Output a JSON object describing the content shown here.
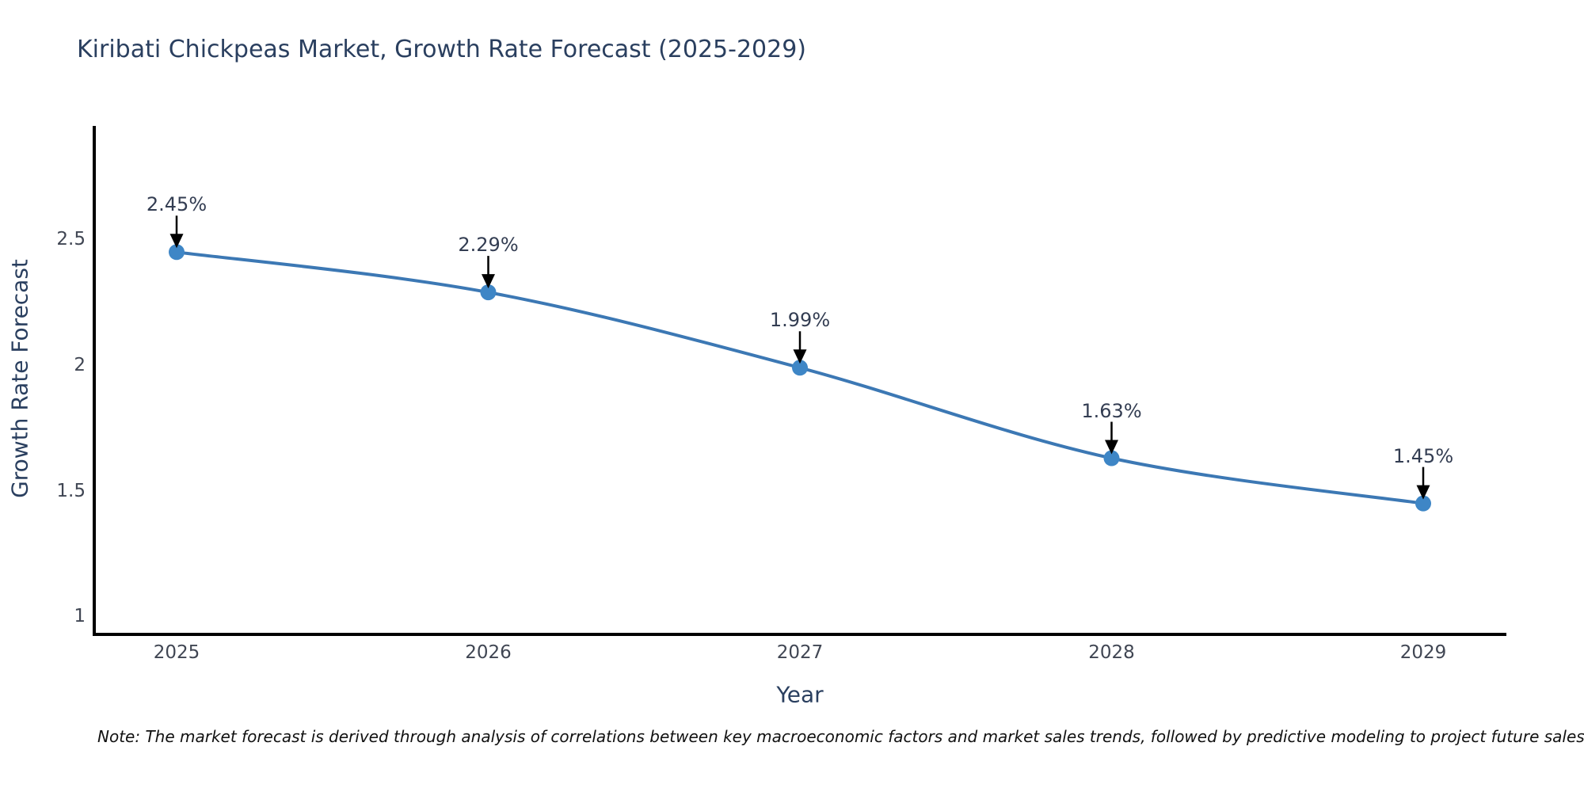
{
  "title": "Kiribati Chickpeas Market, Growth Rate Forecast (2025-2029)",
  "note": "Note: The market forecast is derived through analysis of correlations between key macroeconomic factors and market sales trends, followed by predictive modeling to project future sales",
  "chart_data": {
    "type": "line",
    "title": "Kiribati Chickpeas Market, Growth Rate Forecast (2025-2029)",
    "xlabel": "Year",
    "ylabel": "Growth Rate Forecast",
    "categories": [
      "2025",
      "2026",
      "2027",
      "2028",
      "2029"
    ],
    "values": [
      2.45,
      2.29,
      1.99,
      1.63,
      1.45
    ],
    "point_labels": [
      "2.45%",
      "2.29%",
      "1.99%",
      "1.63%",
      "1.45%"
    ],
    "ytick_values": [
      2.5,
      2,
      1.5,
      1
    ],
    "ytick_labels": [
      "2.5",
      "2",
      "1.5",
      "1"
    ],
    "ylim": [
      0.929,
      2.952
    ],
    "grid": false,
    "legend": "none",
    "line_shape": "spline",
    "annotation_style": "black-arrow-down-to-point",
    "colors": {
      "line": "#3c78b4",
      "marker": "#3e86c6",
      "axis": "#000000",
      "title": "#2a3f5f",
      "tick": "#404653",
      "annotation": "#333d52",
      "note": "#111111",
      "background": "#ffffff"
    }
  }
}
